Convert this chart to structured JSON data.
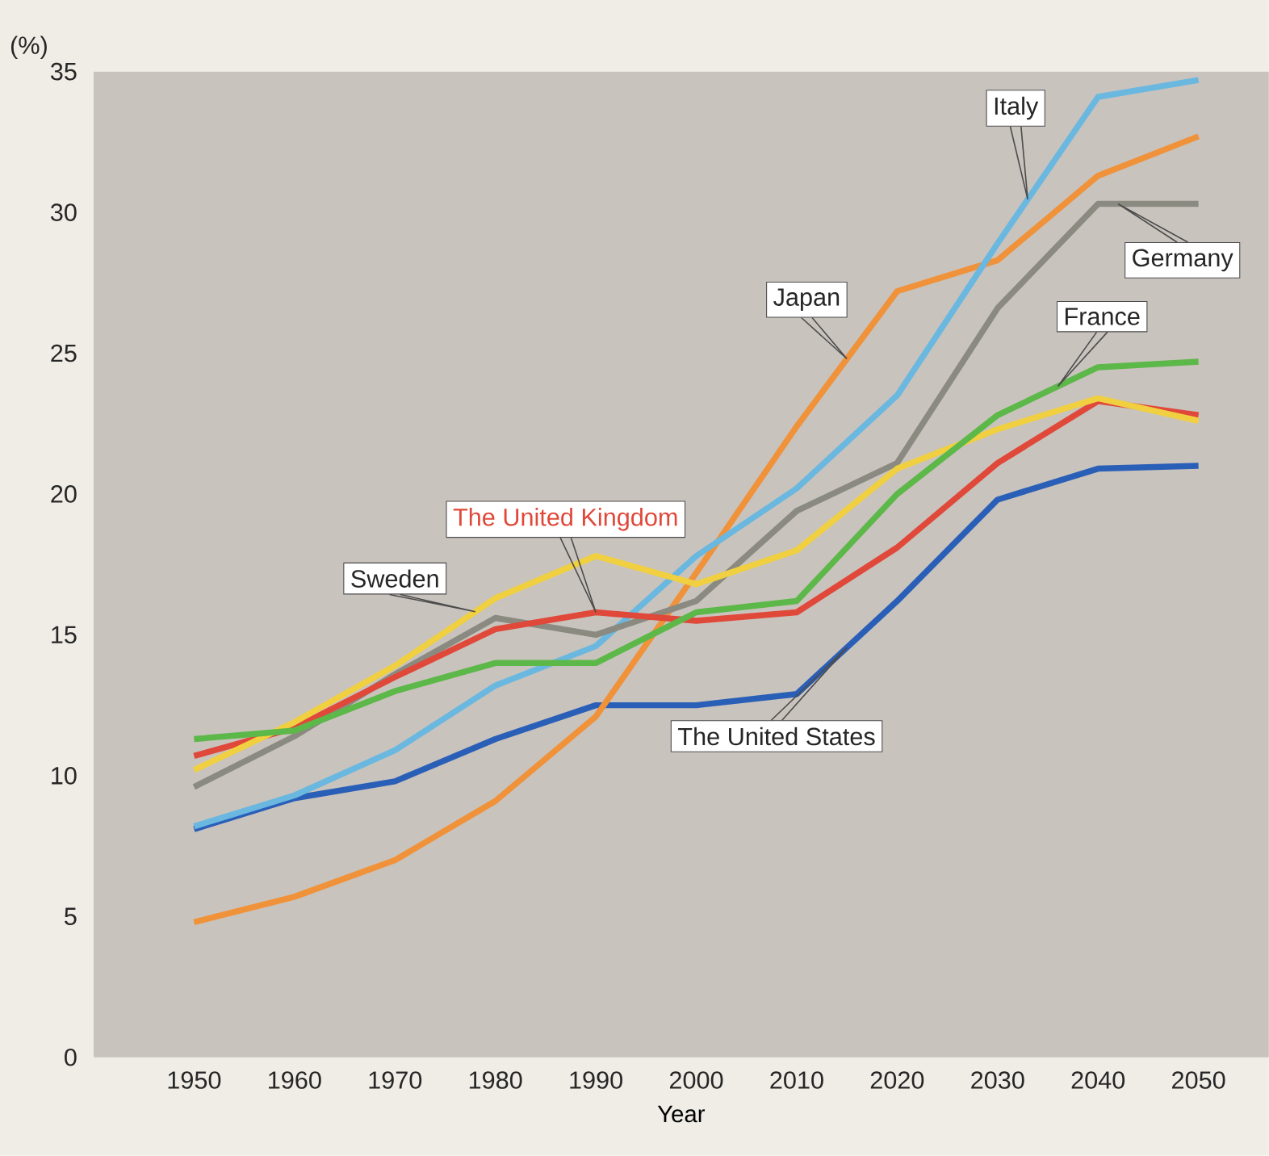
{
  "chart_data": {
    "type": "line",
    "xlabel": "Year",
    "ylabel": "(%)",
    "x": [
      1950,
      1960,
      1970,
      1980,
      1990,
      2000,
      2010,
      2020,
      2030,
      2040,
      2050
    ],
    "xlim": [
      1940,
      2057
    ],
    "xticks": [
      1950,
      1960,
      1970,
      1980,
      1990,
      2000,
      2010,
      2020,
      2030,
      2040,
      2050
    ],
    "ylim": [
      0,
      35
    ],
    "yticks": [
      0,
      5,
      10,
      15,
      20,
      25,
      30,
      35
    ],
    "legend": false,
    "grid": false,
    "marker": "none",
    "line_style": "solid",
    "series": [
      {
        "name": "The United States",
        "color": "#2a5fb8",
        "values": [
          8.1,
          9.2,
          9.8,
          11.3,
          12.5,
          12.5,
          12.9,
          16.2,
          19.8,
          20.9,
          21.0
        ]
      },
      {
        "name": "Japan",
        "color": "#f0923a",
        "values": [
          4.8,
          5.7,
          7.0,
          9.1,
          12.1,
          17.2,
          22.4,
          27.2,
          28.3,
          31.3,
          32.7
        ]
      },
      {
        "name": "Italy",
        "color": "#6ab8e0",
        "values": [
          8.2,
          9.3,
          10.9,
          13.2,
          14.6,
          17.8,
          20.2,
          23.5,
          28.9,
          34.1,
          34.7
        ]
      },
      {
        "name": "Germany",
        "color": "#8a8a80",
        "values": [
          9.6,
          11.4,
          13.6,
          15.6,
          15.0,
          16.2,
          19.4,
          21.1,
          26.6,
          30.3,
          30.3
        ]
      },
      {
        "name": "The United Kingdom",
        "color": "#e0483a",
        "values": [
          10.7,
          11.7,
          13.5,
          15.2,
          15.8,
          15.5,
          15.8,
          18.1,
          21.1,
          23.3,
          22.8
        ]
      },
      {
        "name": "Sweden",
        "color": "#f0d040",
        "values": [
          10.2,
          11.9,
          13.9,
          16.3,
          17.8,
          16.8,
          18.0,
          20.9,
          22.3,
          23.4,
          22.6
        ]
      },
      {
        "name": "France",
        "color": "#5cb848",
        "values": [
          11.3,
          11.6,
          13.0,
          14.0,
          14.0,
          15.8,
          16.2,
          20.0,
          22.8,
          24.5,
          24.7
        ]
      }
    ]
  }
}
